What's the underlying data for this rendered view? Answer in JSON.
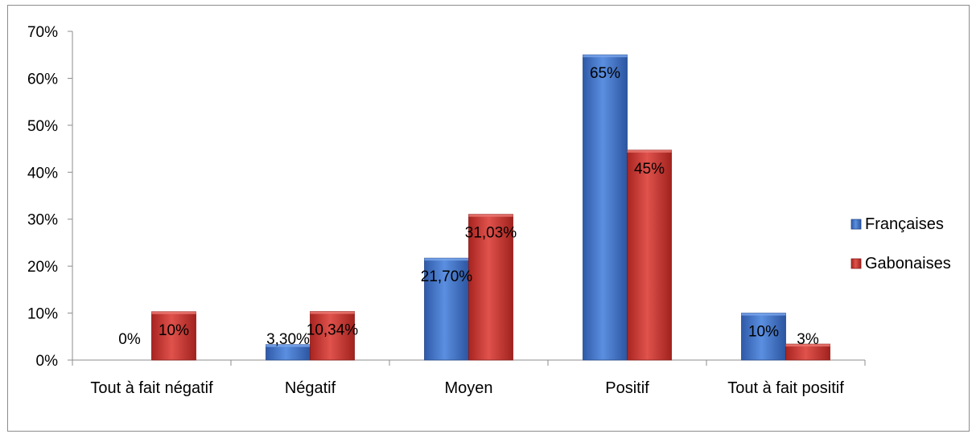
{
  "chart_data": {
    "type": "bar",
    "title": "",
    "xlabel": "",
    "ylabel": "",
    "ylim": [
      0,
      70
    ],
    "yticks": [
      "0%",
      "10%",
      "20%",
      "30%",
      "40%",
      "50%",
      "60%",
      "70%"
    ],
    "categories": [
      "Tout à fait négatif",
      "Négatif",
      "Moyen",
      "Positif",
      "Tout à fait positif"
    ],
    "series": [
      {
        "name": "Françaises",
        "color": "#3d6fc4",
        "values": [
          0,
          3.3,
          21.7,
          65,
          10
        ],
        "labels": [
          "0%",
          "3,30%",
          "21,70%",
          "65%",
          "10%"
        ]
      },
      {
        "name": "Gabonaises",
        "color": "#c0302c",
        "values": [
          10.3,
          10.34,
          31.03,
          44.7,
          3.4
        ],
        "labels": [
          "10%",
          "10,34%",
          "31,03%",
          "45%",
          "3%"
        ]
      }
    ],
    "legend_position": "right",
    "grid": false
  }
}
